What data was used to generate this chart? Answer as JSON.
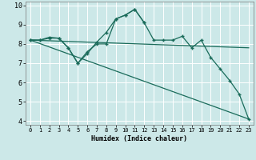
{
  "xlabel": "Humidex (Indice chaleur)",
  "background_color": "#cce8e8",
  "grid_color": "#ffffff",
  "line_color": "#1a6b5a",
  "xlim": [
    -0.5,
    23.5
  ],
  "ylim": [
    3.8,
    10.2
  ],
  "xticks": [
    0,
    1,
    2,
    3,
    4,
    5,
    6,
    7,
    8,
    9,
    10,
    11,
    12,
    13,
    14,
    15,
    16,
    17,
    18,
    19,
    20,
    21,
    22,
    23
  ],
  "yticks": [
    4,
    5,
    6,
    7,
    8,
    9,
    10
  ],
  "line1_x": [
    0,
    1,
    2,
    3,
    4,
    5,
    6,
    7,
    8,
    9,
    10,
    11,
    12,
    13,
    14,
    15,
    16,
    17,
    18,
    19,
    20,
    21,
    22,
    23
  ],
  "line1_y": [
    8.2,
    8.2,
    8.3,
    8.3,
    7.8,
    7.0,
    7.5,
    8.1,
    8.6,
    9.3,
    9.5,
    9.8,
    9.1,
    8.2,
    8.2,
    8.2,
    8.4,
    7.8,
    8.2,
    7.3,
    6.7,
    6.1,
    5.4,
    4.1
  ],
  "line2_x": [
    0,
    1,
    2,
    3,
    4,
    5,
    6,
    7,
    8,
    9,
    10,
    11,
    12
  ],
  "line2_y": [
    8.2,
    8.2,
    8.35,
    8.3,
    7.8,
    7.0,
    7.6,
    8.0,
    8.0,
    9.3,
    9.5,
    9.8,
    9.1
  ],
  "line3_x": [
    0,
    23
  ],
  "line3_y": [
    8.2,
    7.8
  ],
  "line4_x": [
    0,
    23
  ],
  "line4_y": [
    8.2,
    4.1
  ],
  "xlabel_fontsize": 6,
  "tick_fontsize_x": 5,
  "tick_fontsize_y": 6
}
